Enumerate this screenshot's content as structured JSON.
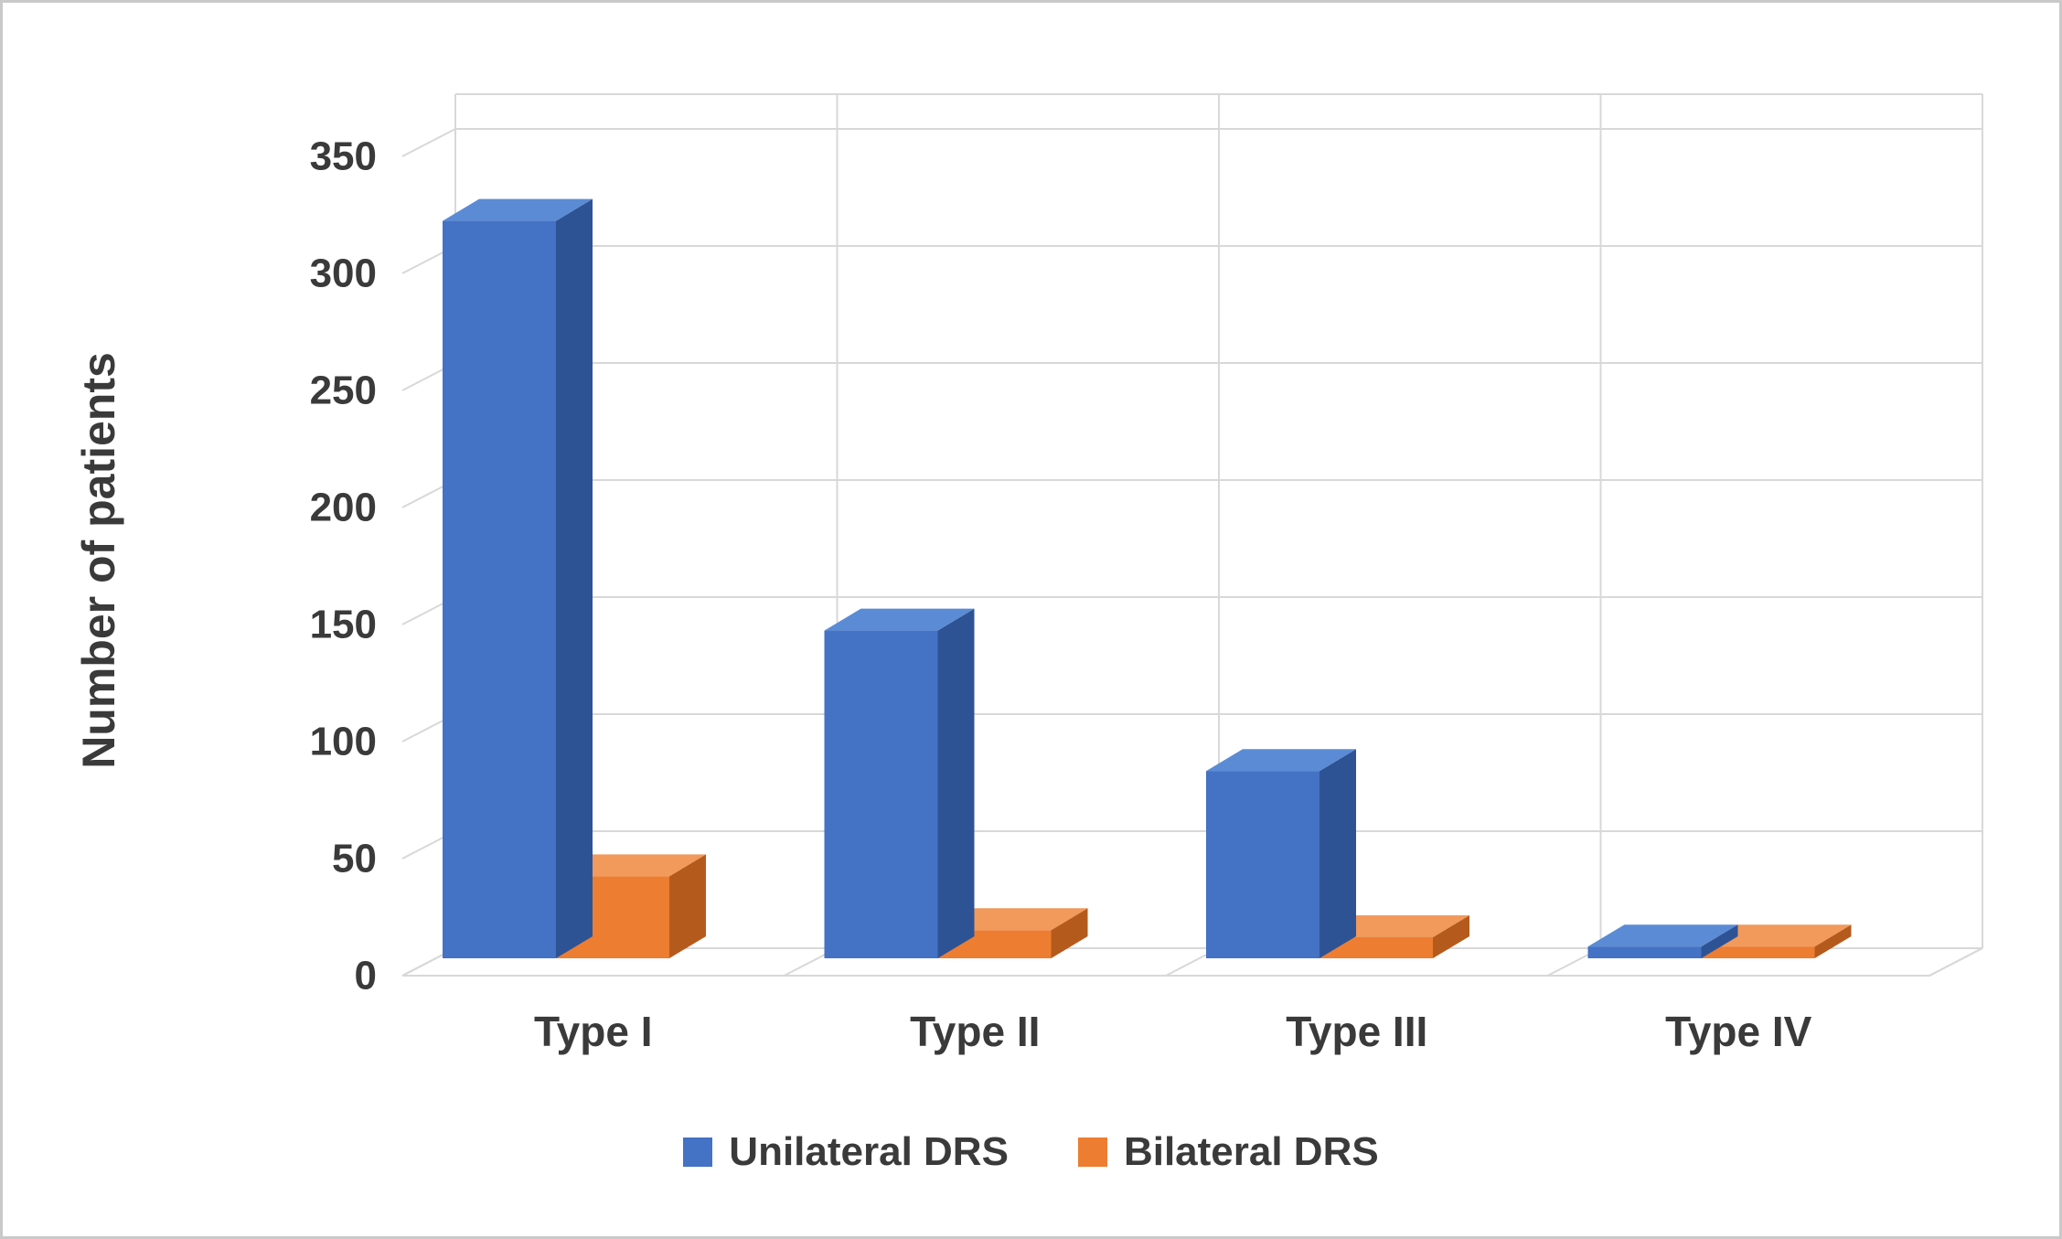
{
  "chart_data": {
    "type": "bar",
    "style": "3d-clustered-column",
    "title": "",
    "ylabel": "Number of patients",
    "xlabel": "",
    "categories": [
      "Type I",
      "Type II",
      "Type III",
      "Type IV"
    ],
    "series": [
      {
        "name": "Unilateral DRS",
        "color": "#4472C4",
        "color_top": "#5B8BD5",
        "color_side": "#2E5395",
        "values": [
          315,
          140,
          80,
          5
        ]
      },
      {
        "name": "Bilateral DRS",
        "color": "#ED7D31",
        "color_top": "#F19A5C",
        "color_side": "#B55A1D",
        "values": [
          35,
          12,
          9,
          5
        ]
      }
    ],
    "ylim": [
      0,
      350
    ],
    "yticks": [
      0,
      50,
      100,
      150,
      200,
      250,
      300,
      350
    ],
    "grid": true,
    "legend_position": "bottom",
    "text_color": "#3a3a3a",
    "grid_color": "#d8d8d8",
    "background": "#FFFFFF",
    "border_color": "#c9c9c9"
  }
}
